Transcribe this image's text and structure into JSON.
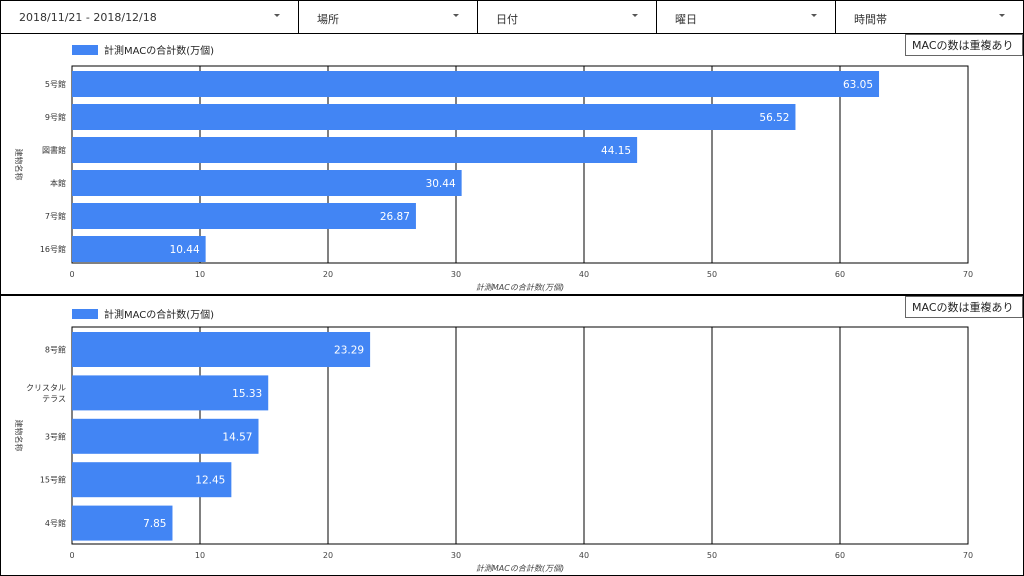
{
  "filters": [
    {
      "label": "2018/11/21 - 2018/12/18",
      "icon": "chevron-down-icon"
    },
    {
      "label": "場所",
      "icon": "chevron-down-icon"
    },
    {
      "label": "日付",
      "icon": "chevron-down-icon"
    },
    {
      "label": "曜日",
      "icon": "chevron-down-icon"
    },
    {
      "label": "時間帯",
      "icon": "chevron-down-icon"
    }
  ],
  "panels": [
    {
      "note": "MACの数は重複あり"
    },
    {
      "note": "MACの数は重複あり"
    }
  ],
  "chart_data": [
    {
      "type": "bar",
      "orientation": "horizontal",
      "categories": [
        "5号館",
        "9号館",
        "図書館",
        "本館",
        "7号館",
        "16号館"
      ],
      "series": [
        {
          "name": "計測MACの合計数(万個)",
          "values": [
            63.05,
            56.52,
            44.15,
            30.44,
            26.87,
            10.44
          ],
          "color": "#4285f4"
        }
      ],
      "xlabel": "計測MACの合計数(万個)",
      "ylabel": "建物名称",
      "xlim": [
        0,
        70
      ],
      "xticks": [
        0,
        10,
        20,
        30,
        40,
        50,
        60,
        70
      ],
      "grid": true,
      "legend": "top-left"
    },
    {
      "type": "bar",
      "orientation": "horizontal",
      "categories": [
        "8号館",
        "クリスタル\nテラス",
        "3号館",
        "15号館",
        "4号館"
      ],
      "series": [
        {
          "name": "計測MACの合計数(万個)",
          "values": [
            23.29,
            15.33,
            14.57,
            12.45,
            7.85
          ],
          "color": "#4285f4"
        }
      ],
      "xlabel": "計測MACの合計数(万個)",
      "ylabel": "建物名称",
      "xlim": [
        0,
        70
      ],
      "xticks": [
        0,
        10,
        20,
        30,
        40,
        50,
        60,
        70
      ],
      "grid": true,
      "legend": "top-left"
    }
  ]
}
